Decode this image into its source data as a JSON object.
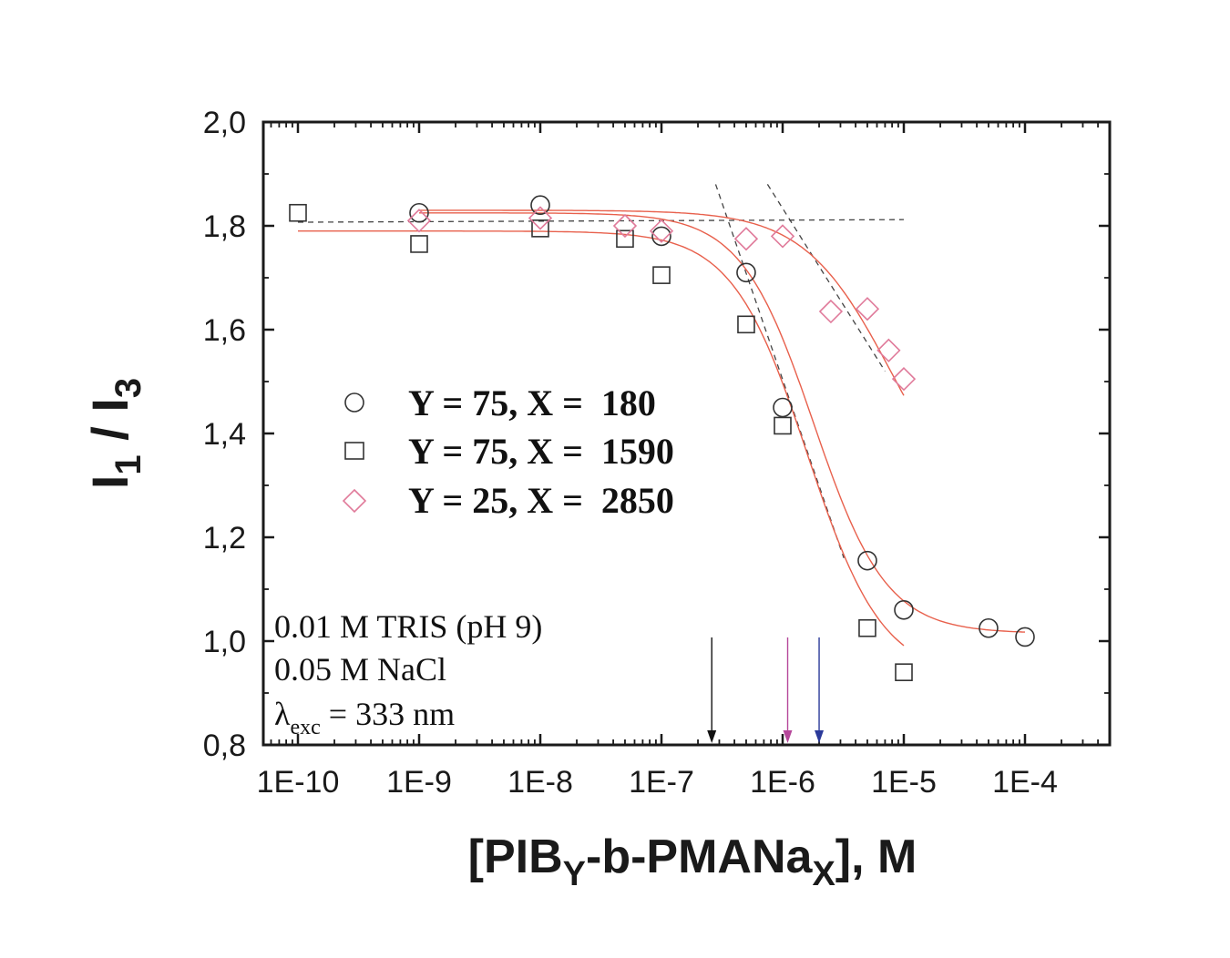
{
  "chart_data": {
    "type": "scatter",
    "x_scale": "log",
    "xlabel": {
      "main": "[PIB",
      "sub1": "Y",
      "mid": "-b-PMANa",
      "sub2": "X",
      "end": "], M"
    },
    "ylabel": {
      "main1": "I",
      "sub1": "1",
      "mid": " / I",
      "sub2": "3"
    },
    "xlim": [
      5e-11,
      0.0005
    ],
    "ylim": [
      0.8,
      2.0
    ],
    "x_tick_values": [
      1e-10,
      1e-09,
      1e-08,
      1e-07,
      1e-06,
      1e-05,
      0.0001
    ],
    "x_tick_labels": [
      "1E-10",
      "1E-9",
      "1E-8",
      "1E-7",
      "1E-6",
      "1E-5",
      "1E-4"
    ],
    "y_tick_values": [
      0.8,
      1.0,
      1.2,
      1.4,
      1.6,
      1.8,
      2.0
    ],
    "y_tick_labels": [
      "0,8",
      "1,0",
      "1,2",
      "1,4",
      "1,6",
      "1,8",
      "2,0"
    ],
    "grid": false,
    "legend_position": "center-left",
    "series": [
      {
        "name": "Y = 75, X =  180",
        "marker": "circle",
        "color": "#333333",
        "x": [
          1e-09,
          1e-08,
          1e-07,
          5e-07,
          1e-06,
          5e-06,
          1e-05,
          5e-05,
          0.0001
        ],
        "y": [
          1.825,
          1.84,
          1.78,
          1.71,
          1.45,
          1.155,
          1.06,
          1.025,
          1.008
        ]
      },
      {
        "name": "Y = 75, X =  1590",
        "marker": "square",
        "color": "#333333",
        "x": [
          1e-10,
          1e-09,
          1e-08,
          5e-08,
          1e-07,
          5e-07,
          1e-06,
          5e-06,
          1e-05
        ],
        "y": [
          1.825,
          1.765,
          1.795,
          1.775,
          1.705,
          1.61,
          1.415,
          1.025,
          0.94
        ]
      },
      {
        "name": "Y = 25, X =  2850",
        "marker": "diamond",
        "color": "#e07a9a",
        "x": [
          1e-09,
          1e-08,
          5e-08,
          1e-07,
          5e-07,
          1e-06,
          2.5e-06,
          5e-06,
          7.5e-06,
          1e-05
        ],
        "y": [
          1.81,
          1.815,
          1.8,
          1.79,
          1.775,
          1.78,
          1.635,
          1.64,
          1.56,
          1.505
        ]
      }
    ],
    "fit_curves": [
      {
        "color": "#e8604c",
        "top": 1.825,
        "bottom": 1.015,
        "x0": 1.8e-06,
        "p": 1.45,
        "x_range": [
          1e-09,
          0.0001
        ]
      },
      {
        "color": "#e8604c",
        "top": 1.79,
        "bottom": 0.93,
        "x0": 1.6e-06,
        "p": 1.4,
        "x_range": [
          1e-10,
          1e-05
        ]
      },
      {
        "color": "#e8604c",
        "top": 1.83,
        "bottom": 1.2,
        "x0": 8e-06,
        "p": 1.2,
        "x_range": [
          1e-09,
          1e-05
        ]
      }
    ],
    "guide_lines": [
      {
        "x": [
          1e-10,
          1e-05
        ],
        "y": [
          1.807,
          1.812
        ]
      },
      {
        "x": [
          2.8e-07,
          3.2e-06
        ],
        "y": [
          1.88,
          1.16
        ]
      },
      {
        "x": [
          7.5e-07,
          7e-06
        ],
        "y": [
          1.88,
          1.52
        ]
      }
    ],
    "arrows": [
      {
        "x": 2.6e-07,
        "color": "#111111"
      },
      {
        "x": 1.1e-06,
        "color": "#b5479a"
      },
      {
        "x": 2e-06,
        "color": "#2b3a9a"
      }
    ],
    "annotations": [
      {
        "text": "0.01 M TRIS (pH 9)"
      },
      {
        "text": "0.05 M NaCl"
      },
      {
        "main": "λ",
        "sub": "exc",
        "rest": " = 333 nm"
      }
    ]
  }
}
